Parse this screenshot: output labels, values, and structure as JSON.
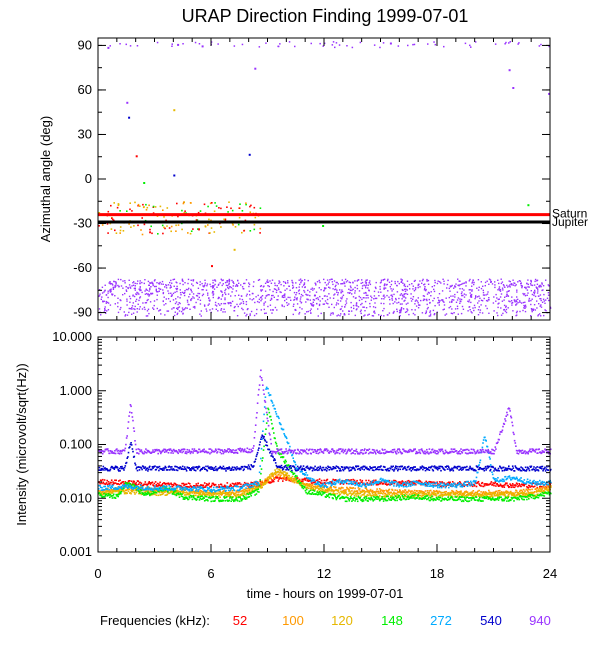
{
  "figure": {
    "title": "URAP Direction Finding  1999-07-01",
    "xlabel": "time - hours on 1999-07-01",
    "legend_label": "Frequencies (kHz):"
  },
  "chart_data": [
    {
      "type": "scatter",
      "name": "azimuth-panel",
      "ylabel": "Azimuthal angle (deg)",
      "xlim": [
        0,
        24
      ],
      "ylim": [
        -95,
        95
      ],
      "x_ticks": [
        0,
        6,
        12,
        18,
        24
      ],
      "y_ticks": [
        90,
        60,
        30,
        0,
        -30,
        -60,
        -90
      ],
      "y_tick_labels": [
        "90",
        "60",
        "30",
        "0",
        "-30",
        "-60",
        "-90"
      ],
      "reference_lines": [
        {
          "name": "Saturn",
          "y": -24,
          "color": "#ff0000"
        },
        {
          "name": "Jupiter",
          "y": -29,
          "color": "#000000"
        }
      ],
      "bands": [
        {
          "freq": "940",
          "y_min": -92,
          "y_max": -67,
          "x_min": 0.0,
          "x_max": 24.0
        }
      ],
      "points": [
        {
          "freq": "940",
          "x": 0.5,
          "y": 89
        },
        {
          "freq": "940",
          "x": 1.5,
          "y": 52
        },
        {
          "freq": "540",
          "x": 1.6,
          "y": 42
        },
        {
          "freq": "52",
          "x": 2.0,
          "y": 16
        },
        {
          "freq": "148",
          "x": 2.4,
          "y": -2
        },
        {
          "freq": "120",
          "x": 4.0,
          "y": 47
        },
        {
          "freq": "540",
          "x": 4.0,
          "y": 3
        },
        {
          "freq": "940",
          "x": 4.2,
          "y": 91
        },
        {
          "freq": "940",
          "x": 5.5,
          "y": 90
        },
        {
          "freq": "120",
          "x": 7.2,
          "y": -47
        },
        {
          "freq": "52",
          "x": 6.0,
          "y": -58
        },
        {
          "freq": "540",
          "x": 8.0,
          "y": 17
        },
        {
          "freq": "940",
          "x": 8.3,
          "y": 75
        },
        {
          "freq": "148",
          "x": 11.9,
          "y": -31
        },
        {
          "freq": "940",
          "x": 15.5,
          "y": 92
        },
        {
          "freq": "940",
          "x": 21.8,
          "y": 74
        },
        {
          "freq": "940",
          "x": 22.0,
          "y": 62
        },
        {
          "freq": "148",
          "x": 22.8,
          "y": -17
        },
        {
          "freq": "940",
          "x": 23.9,
          "y": 58
        }
      ]
    },
    {
      "type": "line",
      "name": "intensity-panel",
      "ylabel": "Intensity (microvolt/sqrt(Hz))",
      "yscale": "log",
      "xlim": [
        0,
        24
      ],
      "ylim": [
        0.001,
        10.0
      ],
      "x_ticks": [
        0,
        6,
        12,
        18,
        24
      ],
      "x_tick_labels": [
        "0",
        "6",
        "12",
        "18",
        "24"
      ],
      "y_ticks": [
        10.0,
        1.0,
        0.1,
        0.01,
        0.001
      ],
      "y_tick_labels": [
        "10.000",
        "1.000",
        "0.100",
        "0.010",
        "0.001"
      ],
      "series": [
        {
          "name": "52",
          "color": "#ff0000",
          "x": [
            0,
            1.5,
            3,
            4.5,
            6,
            7.5,
            8.5,
            9.5,
            11,
            12,
            13,
            15,
            17,
            18,
            19,
            21,
            22,
            23,
            24
          ],
          "y": [
            0.021,
            0.02,
            0.019,
            0.018,
            0.018,
            0.018,
            0.019,
            0.024,
            0.022,
            0.021,
            0.021,
            0.02,
            0.02,
            0.019,
            0.019,
            0.019,
            0.018,
            0.018,
            0.018
          ]
        },
        {
          "name": "100",
          "color": "#ff9900",
          "x": [
            0,
            1.5,
            3,
            4.5,
            6,
            7.5,
            8.5,
            9.5,
            11,
            12,
            13,
            15,
            17,
            18,
            19,
            21,
            22,
            23,
            24
          ],
          "y": [
            0.014,
            0.016,
            0.015,
            0.014,
            0.013,
            0.013,
            0.018,
            0.03,
            0.018,
            0.016,
            0.015,
            0.014,
            0.013,
            0.013,
            0.013,
            0.013,
            0.013,
            0.014,
            0.017
          ]
        },
        {
          "name": "120",
          "color": "#e6b800",
          "x": [
            0,
            1.5,
            3,
            4.5,
            6,
            7.5,
            8.5,
            9.5,
            11,
            12,
            13,
            15,
            17,
            18,
            19,
            21,
            22,
            23,
            24
          ],
          "y": [
            0.013,
            0.014,
            0.013,
            0.013,
            0.012,
            0.012,
            0.016,
            0.035,
            0.017,
            0.014,
            0.013,
            0.012,
            0.012,
            0.012,
            0.012,
            0.012,
            0.012,
            0.012,
            0.015
          ]
        },
        {
          "name": "148",
          "color": "#00ee00",
          "x": [
            0,
            1.0,
            1.5,
            2.5,
            3.5,
            4.5,
            6,
            7.5,
            8.5,
            9.0,
            9.5,
            11,
            12,
            13,
            15,
            17,
            18,
            19,
            21,
            22,
            23,
            24
          ],
          "y": [
            0.012,
            0.011,
            0.02,
            0.012,
            0.016,
            0.011,
            0.01,
            0.01,
            0.014,
            0.5,
            0.08,
            0.014,
            0.012,
            0.01,
            0.01,
            0.011,
            0.01,
            0.01,
            0.01,
            0.01,
            0.011,
            0.013
          ]
        },
        {
          "name": "272",
          "color": "#00aaff",
          "x": [
            0,
            1.5,
            3,
            4.5,
            6,
            7.5,
            8.5,
            8.9,
            9.5,
            10.5,
            11.5,
            12,
            13,
            14,
            15,
            16,
            17,
            18,
            19,
            20,
            20.5,
            21,
            22,
            23,
            24
          ],
          "y": [
            0.016,
            0.017,
            0.016,
            0.016,
            0.015,
            0.016,
            0.02,
            1.3,
            0.35,
            0.04,
            0.02,
            0.018,
            0.022,
            0.018,
            0.022,
            0.018,
            0.02,
            0.018,
            0.018,
            0.02,
            0.15,
            0.022,
            0.025,
            0.02,
            0.02
          ]
        },
        {
          "name": "540",
          "color": "#0000cc",
          "x": [
            0,
            1.4,
            1.7,
            2.0,
            4.0,
            6.0,
            7.5,
            8.2,
            8.7,
            9.5,
            11,
            12,
            13,
            15,
            16,
            18,
            20,
            21,
            22,
            23,
            24
          ],
          "y": [
            0.037,
            0.037,
            0.12,
            0.037,
            0.037,
            0.037,
            0.037,
            0.04,
            0.15,
            0.038,
            0.037,
            0.037,
            0.037,
            0.037,
            0.037,
            0.037,
            0.037,
            0.037,
            0.037,
            0.037,
            0.037
          ]
        },
        {
          "name": "940",
          "color": "#9933ff",
          "x": [
            0,
            1.4,
            1.7,
            2.0,
            4,
            6,
            8.2,
            8.6,
            9.2,
            12,
            15,
            18,
            21,
            21.8,
            22.2,
            24
          ],
          "y": [
            0.077,
            0.077,
            0.6,
            0.077,
            0.077,
            0.077,
            0.08,
            2.4,
            0.077,
            0.077,
            0.077,
            0.077,
            0.077,
            0.5,
            0.077,
            0.077
          ]
        }
      ]
    }
  ],
  "legend": [
    {
      "label": "52",
      "color": "#ff0000"
    },
    {
      "label": "100",
      "color": "#ff9900"
    },
    {
      "label": "120",
      "color": "#e6b800"
    },
    {
      "label": "148",
      "color": "#00ee00"
    },
    {
      "label": "272",
      "color": "#00aaff"
    },
    {
      "label": "540",
      "color": "#0000cc"
    },
    {
      "label": "940",
      "color": "#9933ff"
    }
  ]
}
